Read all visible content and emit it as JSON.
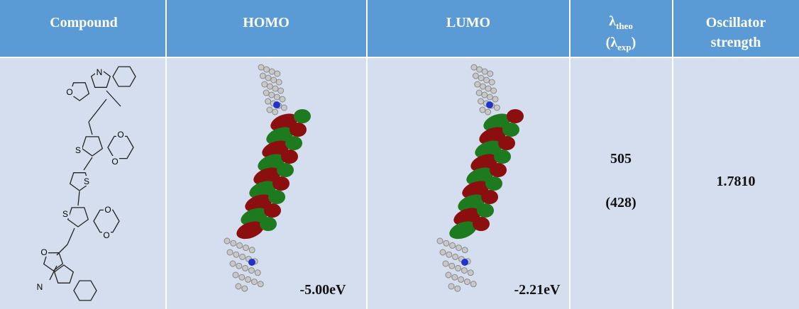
{
  "table": {
    "header": {
      "compound": "Compound",
      "homo": "HOMO",
      "lumo": "LUMO",
      "lambda": {
        "line1": [
          "λ",
          "theo"
        ],
        "line2": [
          "(λ",
          "exp",
          ")"
        ]
      },
      "oscillator": [
        "Oscillator",
        "strength"
      ]
    },
    "row": {
      "atoms": [
        "N",
        "O",
        "S",
        "O",
        "O",
        "S",
        "S",
        "O",
        "O",
        "O",
        "N"
      ],
      "homo_energy": "-5.00eV",
      "lumo_energy": "-2.21eV",
      "lambda_theo": "505",
      "lambda_exp": "(428)",
      "oscillator_strength": "1.7810"
    }
  }
}
